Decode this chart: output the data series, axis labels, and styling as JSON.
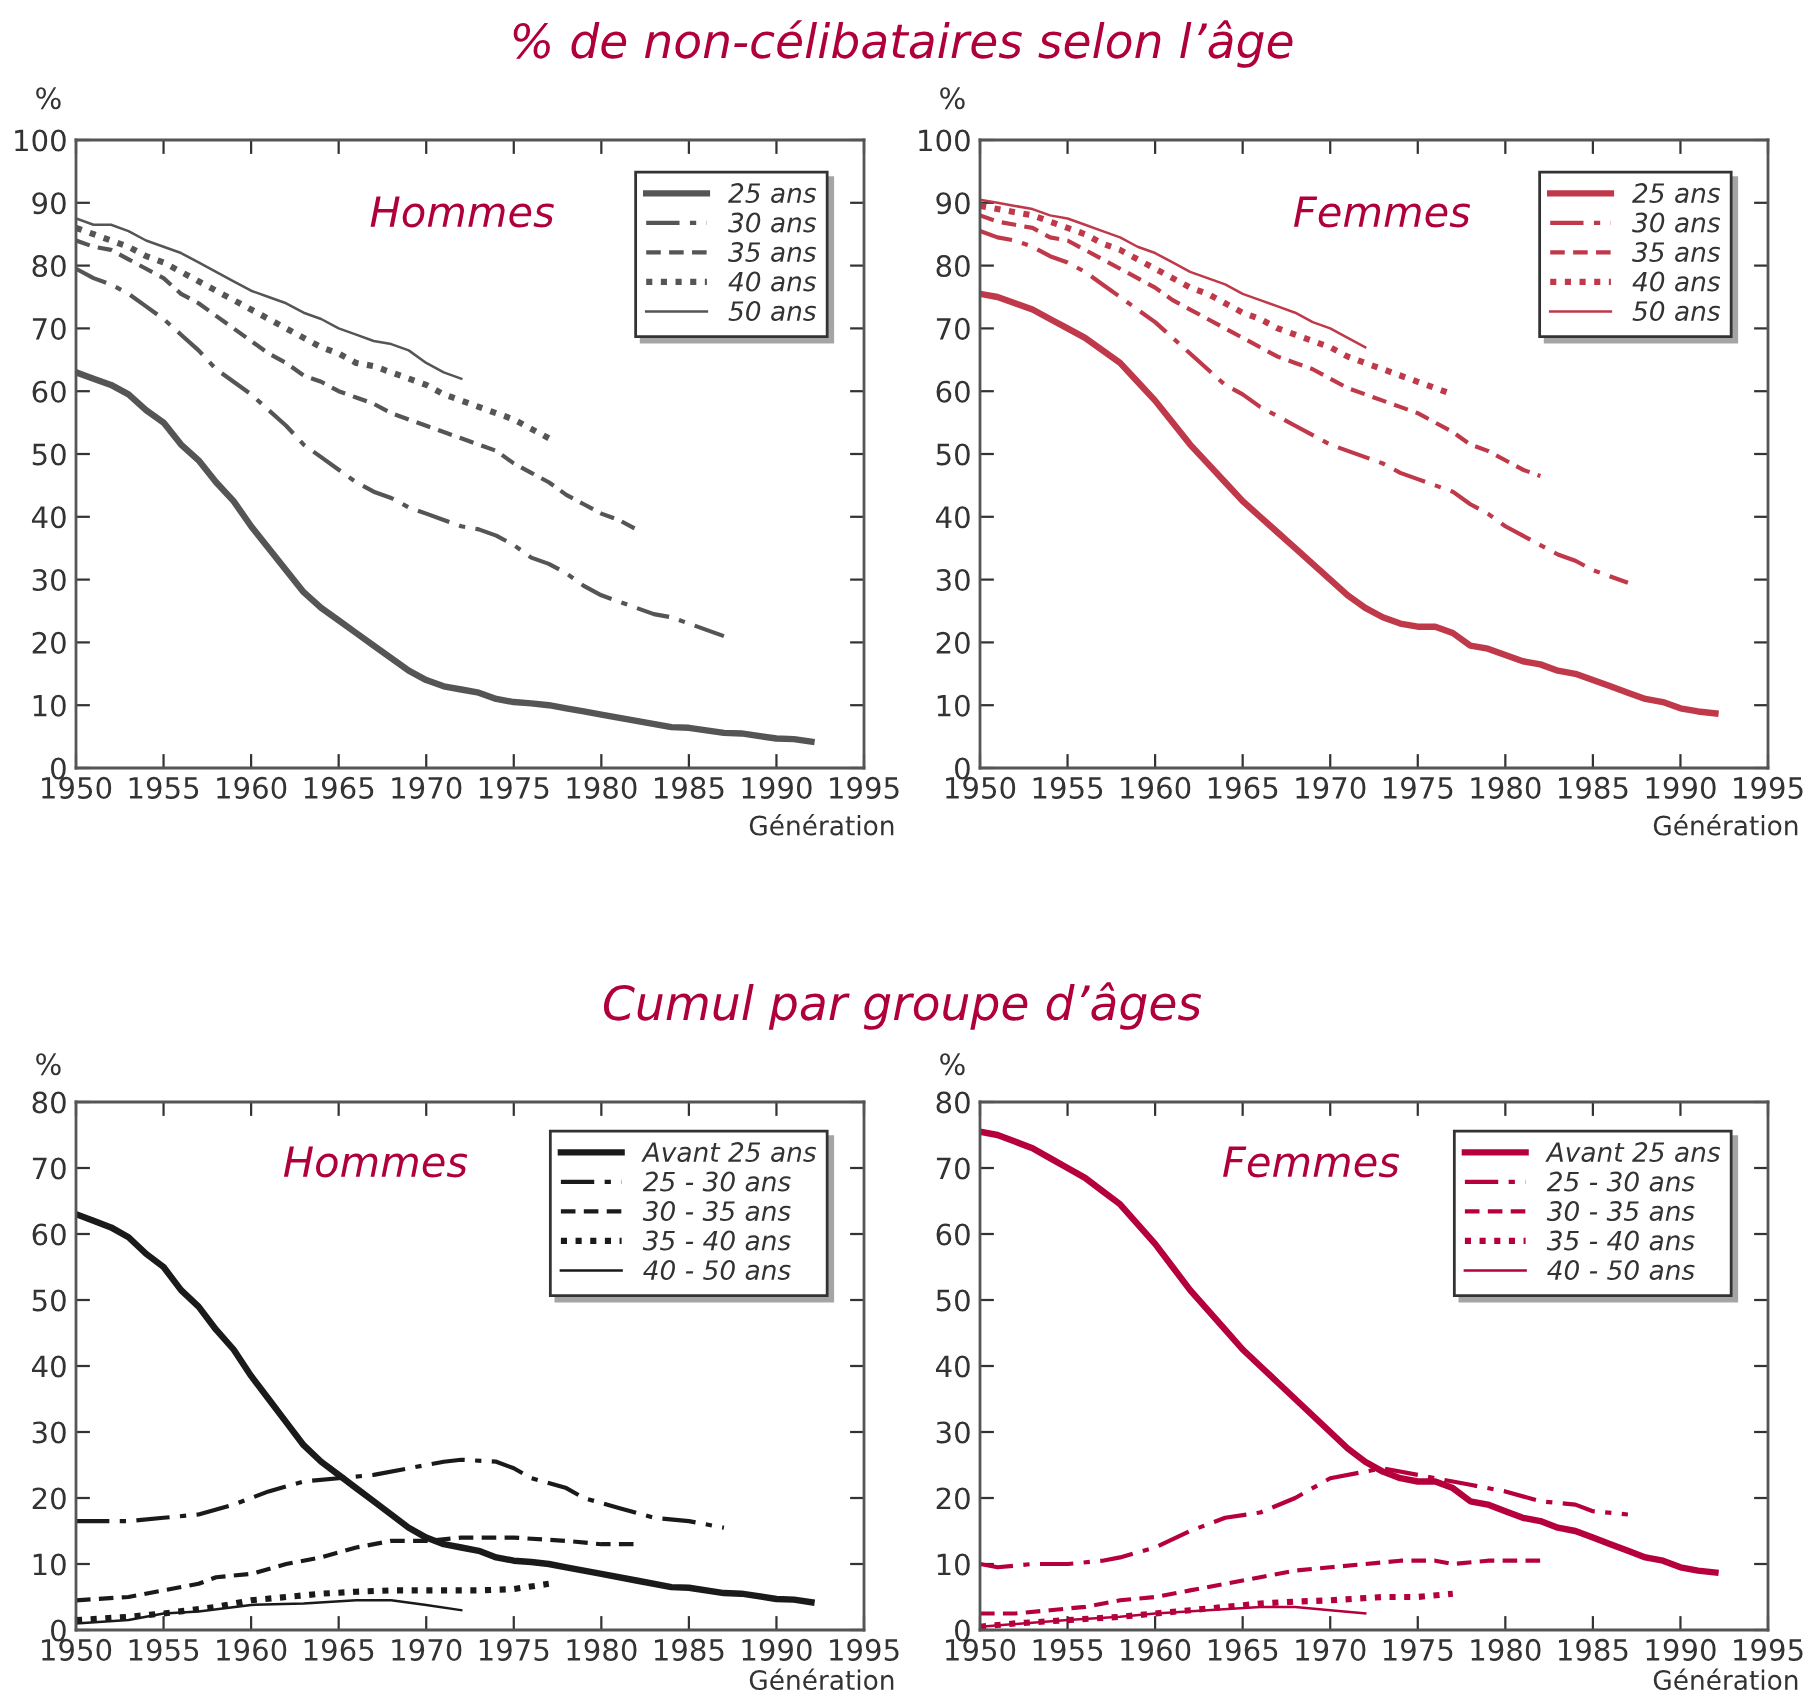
{
  "chart_data": [
    {
      "type": "line",
      "title": "% de non-célibataires selon l’âge",
      "ylabel": "%",
      "xlabel": "Génération",
      "annotations": [
        "Hommes"
      ],
      "xlim": [
        1950,
        1995
      ],
      "xticks": [
        1950,
        1955,
        1960,
        1965,
        1970,
        1975,
        1980,
        1985,
        1990,
        1995
      ],
      "ylim": [
        0,
        100
      ],
      "yticks": [
        0,
        10,
        20,
        30,
        40,
        50,
        60,
        70,
        80,
        90,
        100
      ],
      "legend": "top right",
      "grid": false,
      "series": [
        {
          "name": "25 ans",
          "color": "#555555",
          "line_style": "solid",
          "x": [
            1950,
            1951,
            1952,
            1953,
            1954,
            1955,
            1956,
            1957,
            1958,
            1959,
            1960,
            1961,
            1962,
            1963,
            1964,
            1965,
            1966,
            1967,
            1968,
            1969,
            1970,
            1971,
            1972,
            1973,
            1974,
            1975,
            1976,
            1977,
            1978,
            1979,
            1980,
            1982,
            1984,
            1985,
            1987,
            1988,
            1990,
            1991,
            1992
          ],
          "values": [
            63,
            62,
            61,
            59.5,
            57,
            55,
            51.5,
            49,
            45.5,
            42.5,
            38.5,
            35,
            31.5,
            28,
            25.5,
            23.5,
            21.5,
            19.5,
            17.5,
            15.5,
            14,
            13,
            12.5,
            12,
            11,
            10.5,
            10.3,
            10,
            9.5,
            9,
            8.5,
            7.5,
            6.5,
            6.4,
            5.6,
            5.5,
            4.7,
            4.6,
            4.2
          ]
        },
        {
          "name": "30 ans",
          "color": "#555555",
          "line_style": "dashdot",
          "x": [
            1950,
            1951,
            1952,
            1953,
            1954,
            1955,
            1956,
            1957,
            1958,
            1959,
            1960,
            1961,
            1962,
            1963,
            1964,
            1965,
            1966,
            1967,
            1968,
            1969,
            1970,
            1971,
            1972,
            1973,
            1974,
            1975,
            1976,
            1977,
            1978,
            1979,
            1980,
            1981,
            1982,
            1983,
            1984,
            1985,
            1986,
            1987
          ],
          "values": [
            79.5,
            78,
            77,
            75.5,
            73.5,
            71.5,
            69,
            66.5,
            63.5,
            61.5,
            59.5,
            57,
            54.5,
            51.5,
            49.5,
            47.5,
            45.5,
            44,
            43,
            41.5,
            40.5,
            39.5,
            38.5,
            38,
            37,
            35.5,
            33.5,
            32.5,
            31,
            29,
            27.5,
            26.5,
            25.5,
            24.5,
            24,
            23,
            22,
            21
          ]
        },
        {
          "name": "35 ans",
          "color": "#555555",
          "line_style": "dashed",
          "x": [
            1950,
            1951,
            1952,
            1953,
            1954,
            1955,
            1956,
            1957,
            1958,
            1959,
            1960,
            1961,
            1962,
            1963,
            1964,
            1965,
            1966,
            1967,
            1968,
            1969,
            1970,
            1971,
            1972,
            1973,
            1974,
            1975,
            1976,
            1977,
            1978,
            1979,
            1980,
            1981,
            1982
          ],
          "values": [
            84,
            83,
            82.5,
            81,
            79.5,
            78,
            75.5,
            74,
            72,
            70,
            68,
            66,
            64.5,
            62.5,
            61.5,
            60,
            59,
            58,
            56.5,
            55.5,
            54.5,
            53.5,
            52.5,
            51.5,
            50.5,
            48.5,
            47,
            45.5,
            43.5,
            42,
            40.5,
            39.5,
            38
          ]
        },
        {
          "name": "40 ans",
          "color": "#555555",
          "line_style": "dotted",
          "x": [
            1950,
            1951,
            1952,
            1953,
            1954,
            1955,
            1956,
            1957,
            1958,
            1959,
            1960,
            1961,
            1962,
            1963,
            1964,
            1965,
            1966,
            1967,
            1968,
            1969,
            1970,
            1971,
            1972,
            1973,
            1974,
            1975,
            1976,
            1977
          ],
          "values": [
            86,
            85,
            84,
            83,
            81.5,
            80.5,
            79,
            77.5,
            76,
            74.5,
            73,
            71.5,
            70,
            68.5,
            67,
            66,
            64.5,
            64,
            63,
            62,
            61,
            59.5,
            58.5,
            57.5,
            56.5,
            55.5,
            54,
            52.5
          ]
        },
        {
          "name": "50 ans",
          "color": "#555555",
          "line_style": "solid",
          "x": [
            1950,
            1951,
            1952,
            1953,
            1954,
            1955,
            1956,
            1957,
            1958,
            1959,
            1960,
            1961,
            1962,
            1963,
            1964,
            1965,
            1966,
            1967,
            1968,
            1969,
            1970,
            1971,
            1972
          ],
          "values": [
            87.5,
            86.5,
            86.5,
            85.5,
            84,
            83,
            82,
            80.5,
            79,
            77.5,
            76,
            75,
            74,
            72.5,
            71.5,
            70,
            69,
            68,
            67.5,
            66.5,
            64.5,
            63,
            62
          ]
        }
      ]
    },
    {
      "type": "line",
      "ylabel": "%",
      "xlabel": "Génération",
      "annotations": [
        "Femmes"
      ],
      "xlim": [
        1950,
        1995
      ],
      "xticks": [
        1950,
        1955,
        1960,
        1965,
        1970,
        1975,
        1980,
        1985,
        1990,
        1995
      ],
      "ylim": [
        0,
        100
      ],
      "yticks": [
        0,
        10,
        20,
        30,
        40,
        50,
        60,
        70,
        80,
        90,
        100
      ],
      "legend": "top right",
      "grid": false,
      "series": [
        {
          "name": "25 ans",
          "color": "#c0394a",
          "line_style": "solid",
          "x": [
            1950,
            1951,
            1952,
            1953,
            1954,
            1955,
            1956,
            1957,
            1958,
            1959,
            1960,
            1961,
            1962,
            1963,
            1964,
            1965,
            1966,
            1967,
            1968,
            1969,
            1970,
            1971,
            1972,
            1973,
            1974,
            1975,
            1976,
            1977,
            1978,
            1979,
            1980,
            1981,
            1982,
            1983,
            1984,
            1985,
            1986,
            1987,
            1988,
            1989,
            1990,
            1991,
            1992
          ],
          "values": [
            75.5,
            75,
            74,
            73,
            71.5,
            70,
            68.5,
            66.5,
            64.5,
            61.5,
            58.5,
            55,
            51.5,
            48.5,
            45.5,
            42.5,
            40,
            37.5,
            35,
            32.5,
            30,
            27.5,
            25.5,
            24,
            23,
            22.5,
            22.5,
            21.5,
            19.5,
            19,
            18,
            17,
            16.5,
            15.5,
            15,
            14,
            13,
            12,
            11,
            10.5,
            9.5,
            9,
            8.7
          ]
        },
        {
          "name": "30 ans",
          "color": "#c0394a",
          "line_style": "dashdot",
          "x": [
            1950,
            1951,
            1952,
            1953,
            1954,
            1955,
            1956,
            1957,
            1958,
            1959,
            1960,
            1961,
            1962,
            1963,
            1964,
            1965,
            1966,
            1967,
            1968,
            1969,
            1970,
            1971,
            1972,
            1973,
            1974,
            1975,
            1976,
            1977,
            1978,
            1979,
            1980,
            1981,
            1982,
            1983,
            1984,
            1985,
            1986,
            1987
          ],
          "values": [
            85.5,
            84.5,
            84,
            83,
            81.5,
            80.5,
            79,
            77,
            75,
            73,
            71,
            68.5,
            66,
            63.5,
            61,
            59.5,
            57.5,
            56,
            54.5,
            53,
            51.5,
            50.5,
            49.5,
            48.5,
            47,
            46,
            45,
            44,
            42,
            40.5,
            38.5,
            37,
            35.5,
            34,
            33,
            31.5,
            30.5,
            29.5
          ]
        },
        {
          "name": "35 ans",
          "color": "#c0394a",
          "line_style": "dashed",
          "x": [
            1950,
            1951,
            1952,
            1953,
            1954,
            1955,
            1956,
            1957,
            1958,
            1959,
            1960,
            1961,
            1962,
            1963,
            1964,
            1965,
            1966,
            1967,
            1968,
            1969,
            1970,
            1971,
            1972,
            1973,
            1974,
            1975,
            1976,
            1977,
            1978,
            1979,
            1980,
            1981,
            1982
          ],
          "values": [
            88,
            87,
            86.5,
            86,
            84.5,
            84,
            82.5,
            81,
            79.5,
            78,
            76.5,
            74.5,
            73,
            71.5,
            70,
            68.5,
            67,
            65.5,
            64.5,
            63.5,
            62,
            60.5,
            59.5,
            58.5,
            57.5,
            56.5,
            55,
            53.5,
            51.5,
            50.5,
            49,
            47.5,
            46.5
          ]
        },
        {
          "name": "40 ans",
          "color": "#c0394a",
          "line_style": "dotted",
          "x": [
            1950,
            1951,
            1952,
            1953,
            1954,
            1955,
            1956,
            1957,
            1958,
            1959,
            1960,
            1961,
            1962,
            1963,
            1964,
            1965,
            1966,
            1967,
            1968,
            1969,
            1970,
            1971,
            1972,
            1973,
            1974,
            1975,
            1976,
            1977
          ],
          "values": [
            89.5,
            89,
            88.5,
            88,
            87,
            86,
            85,
            83.5,
            82.5,
            81,
            79.5,
            78,
            76.5,
            75.5,
            74,
            72.5,
            71.5,
            70,
            69,
            68,
            67,
            65.5,
            64.5,
            63.5,
            62.5,
            61.5,
            60.5,
            59.5
          ]
        },
        {
          "name": "50 ans",
          "color": "#c0394a",
          "line_style": "solid",
          "x": [
            1950,
            1951,
            1952,
            1953,
            1954,
            1955,
            1956,
            1957,
            1958,
            1959,
            1960,
            1961,
            1962,
            1963,
            1964,
            1965,
            1966,
            1967,
            1968,
            1969,
            1970,
            1971,
            1972
          ],
          "values": [
            90.5,
            90,
            89.5,
            89,
            88,
            87.5,
            86.5,
            85.5,
            84.5,
            83,
            82,
            80.5,
            79,
            78,
            77,
            75.5,
            74.5,
            73.5,
            72.5,
            71,
            70,
            68.5,
            67
          ]
        }
      ]
    },
    {
      "type": "line",
      "title": "Cumul par groupe d’âges",
      "ylabel": "%",
      "xlabel": "Génération",
      "annotations": [
        "Hommes"
      ],
      "xlim": [
        1950,
        1995
      ],
      "xticks": [
        1950,
        1955,
        1960,
        1965,
        1970,
        1975,
        1980,
        1985,
        1990,
        1995
      ],
      "ylim": [
        0,
        80
      ],
      "yticks": [
        0,
        10,
        20,
        30,
        40,
        50,
        60,
        70,
        80
      ],
      "legend": "top right",
      "grid": false,
      "series": [
        {
          "name": "Avant 25 ans",
          "color": "#1a1a1a",
          "line_style": "solid",
          "x": [
            1950,
            1951,
            1952,
            1953,
            1954,
            1955,
            1956,
            1957,
            1958,
            1959,
            1960,
            1961,
            1962,
            1963,
            1964,
            1965,
            1966,
            1967,
            1968,
            1969,
            1970,
            1971,
            1972,
            1973,
            1974,
            1975,
            1976,
            1977,
            1978,
            1979,
            1980,
            1982,
            1984,
            1985,
            1987,
            1988,
            1990,
            1991,
            1992
          ],
          "values": [
            63,
            62,
            61,
            59.5,
            57,
            55,
            51.5,
            49,
            45.5,
            42.5,
            38.5,
            35,
            31.5,
            28,
            25.5,
            23.5,
            21.5,
            19.5,
            17.5,
            15.5,
            14,
            13,
            12.5,
            12,
            11,
            10.5,
            10.3,
            10,
            9.5,
            9,
            8.5,
            7.5,
            6.5,
            6.4,
            5.6,
            5.5,
            4.7,
            4.6,
            4.2
          ]
        },
        {
          "name": "25 - 30 ans",
          "color": "#1a1a1a",
          "line_style": "dashdot",
          "x": [
            1950,
            1953,
            1955,
            1957,
            1959,
            1961,
            1963,
            1965,
            1967,
            1969,
            1971,
            1972,
            1974,
            1975,
            1976,
            1978,
            1979,
            1981,
            1983,
            1985,
            1987
          ],
          "values": [
            16.5,
            16.5,
            17,
            17.5,
            19,
            21,
            22.5,
            23,
            23.5,
            24.5,
            25.5,
            25.8,
            25.5,
            24.5,
            23,
            21.5,
            20,
            18.5,
            17,
            16.5,
            15.5
          ]
        },
        {
          "name": "30 - 35 ans",
          "color": "#1a1a1a",
          "line_style": "dashed",
          "x": [
            1950,
            1953,
            1955,
            1957,
            1958,
            1960,
            1962,
            1964,
            1966,
            1968,
            1970,
            1972,
            1975,
            1978,
            1980,
            1982
          ],
          "values": [
            4.5,
            5,
            6,
            7,
            8,
            8.5,
            10,
            11,
            12.5,
            13.5,
            13.5,
            14,
            14,
            13.5,
            13,
            13
          ]
        },
        {
          "name": "35 - 40 ans",
          "color": "#1a1a1a",
          "line_style": "dotted",
          "x": [
            1950,
            1953,
            1955,
            1958,
            1960,
            1962,
            1964,
            1966,
            1968,
            1970,
            1973,
            1975,
            1977
          ],
          "values": [
            1.5,
            2,
            2.5,
            3.5,
            4.5,
            5,
            5.5,
            5.8,
            6,
            6,
            6,
            6.2,
            7
          ]
        },
        {
          "name": "40 - 50 ans",
          "color": "#1a1a1a",
          "line_style": "solid",
          "x": [
            1950,
            1953,
            1955,
            1957,
            1960,
            1963,
            1966,
            1968,
            1970,
            1972
          ],
          "values": [
            1,
            1.5,
            2.5,
            2.8,
            3.8,
            4,
            4.5,
            4.5,
            3.8,
            3
          ]
        }
      ]
    },
    {
      "type": "line",
      "ylabel": "%",
      "xlabel": "Génération",
      "annotations": [
        "Femmes"
      ],
      "xlim": [
        1950,
        1995
      ],
      "xticks": [
        1950,
        1955,
        1960,
        1965,
        1970,
        1975,
        1980,
        1985,
        1990,
        1995
      ],
      "ylim": [
        0,
        80
      ],
      "yticks": [
        0,
        10,
        20,
        30,
        40,
        50,
        60,
        70,
        80
      ],
      "legend": "top right",
      "grid": false,
      "series": [
        {
          "name": "Avant 25 ans",
          "color": "#b5003c",
          "line_style": "solid",
          "x": [
            1950,
            1951,
            1952,
            1953,
            1954,
            1955,
            1956,
            1957,
            1958,
            1959,
            1960,
            1961,
            1962,
            1963,
            1964,
            1965,
            1966,
            1967,
            1968,
            1969,
            1970,
            1971,
            1972,
            1973,
            1974,
            1975,
            1976,
            1977,
            1978,
            1979,
            1980,
            1981,
            1982,
            1983,
            1984,
            1985,
            1986,
            1987,
            1988,
            1989,
            1990,
            1991,
            1992
          ],
          "values": [
            75.5,
            75,
            74,
            73,
            71.5,
            70,
            68.5,
            66.5,
            64.5,
            61.5,
            58.5,
            55,
            51.5,
            48.5,
            45.5,
            42.5,
            40,
            37.5,
            35,
            32.5,
            30,
            27.5,
            25.5,
            24,
            23,
            22.5,
            22.5,
            21.5,
            19.5,
            19,
            18,
            17,
            16.5,
            15.5,
            15,
            14,
            13,
            12,
            11,
            10.5,
            9.5,
            9,
            8.7
          ]
        },
        {
          "name": "25 - 30 ans",
          "color": "#b5003c",
          "line_style": "dashdot",
          "x": [
            1950,
            1951,
            1953,
            1955,
            1957,
            1958,
            1960,
            1962,
            1964,
            1966,
            1968,
            1970,
            1972,
            1973,
            1975,
            1977,
            1978,
            1980,
            1982,
            1984,
            1985,
            1987
          ],
          "values": [
            10,
            9.5,
            10,
            10,
            10.5,
            11,
            12.5,
            15,
            17,
            17.8,
            20,
            23,
            24,
            24.5,
            23.5,
            22.5,
            22,
            21,
            19.5,
            19,
            18,
            17.5
          ]
        },
        {
          "name": "30 - 35 ans",
          "color": "#b5003c",
          "line_style": "dashed",
          "x": [
            1950,
            1952,
            1954,
            1956,
            1958,
            1960,
            1962,
            1964,
            1966,
            1968,
            1970,
            1972,
            1974,
            1976,
            1977,
            1979,
            1982
          ],
          "values": [
            2.5,
            2.5,
            3,
            3.5,
            4.5,
            5,
            6,
            7,
            8,
            9,
            9.5,
            10,
            10.5,
            10.5,
            10,
            10.5,
            10.5
          ]
        },
        {
          "name": "35 - 40 ans",
          "color": "#b5003c",
          "line_style": "dotted",
          "x": [
            1950,
            1952,
            1955,
            1958,
            1960,
            1962,
            1964,
            1966,
            1968,
            1970,
            1973,
            1975,
            1977
          ],
          "values": [
            0.5,
            1,
            1.5,
            2,
            2.5,
            3,
            3.5,
            4,
            4.3,
            4.5,
            5,
            5,
            5.5
          ]
        },
        {
          "name": "40 - 50 ans",
          "color": "#b5003c",
          "line_style": "solid",
          "x": [
            1950,
            1955,
            1958,
            1960,
            1963,
            1966,
            1968,
            1970,
            1972
          ],
          "values": [
            0.5,
            1.5,
            2,
            2.5,
            3,
            3.5,
            3.5,
            3,
            2.5
          ]
        }
      ]
    }
  ]
}
